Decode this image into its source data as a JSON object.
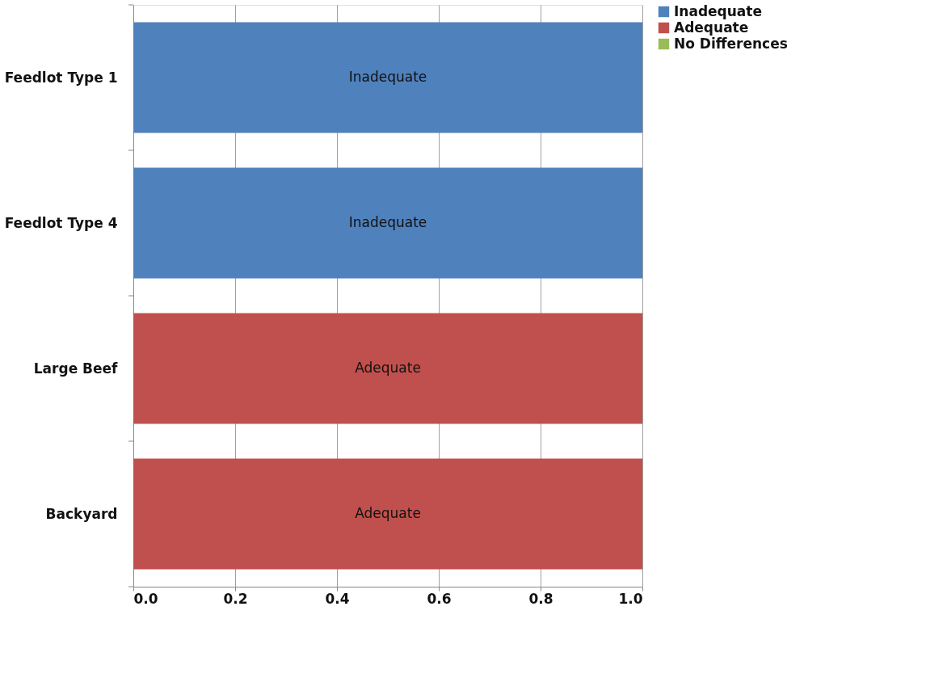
{
  "chart_data": {
    "type": "bar",
    "orientation": "horizontal",
    "stacked": true,
    "categories": [
      "Feedlot Type 1",
      "Feedlot Type 4",
      "Large Beef",
      "Backyard"
    ],
    "series": [
      {
        "name": "Inadequate",
        "color": "#4f81bd",
        "values": [
          1,
          1,
          0,
          0
        ],
        "value_labels": [
          "Inadequate",
          "Inadequate",
          null,
          null
        ]
      },
      {
        "name": "Adequate",
        "color": "#c0504d",
        "values": [
          0,
          0,
          1,
          1
        ],
        "value_labels": [
          null,
          null,
          "Adequate",
          "Adequate"
        ]
      },
      {
        "name": "No Differences",
        "color": "#9bbb59",
        "values": [
          0,
          0,
          0,
          0
        ]
      }
    ],
    "xlim": [
      0,
      1
    ],
    "xticks": [
      {
        "value": 0,
        "label": "0.0"
      },
      {
        "value": 0.2,
        "label": "0.2"
      },
      {
        "value": 0.4,
        "label": "0.4"
      },
      {
        "value": 0.6,
        "label": "0.6"
      },
      {
        "value": 0.8,
        "label": "0.8"
      },
      {
        "value": 1,
        "label": "1.0"
      }
    ],
    "grid": "x",
    "legend": "right"
  }
}
